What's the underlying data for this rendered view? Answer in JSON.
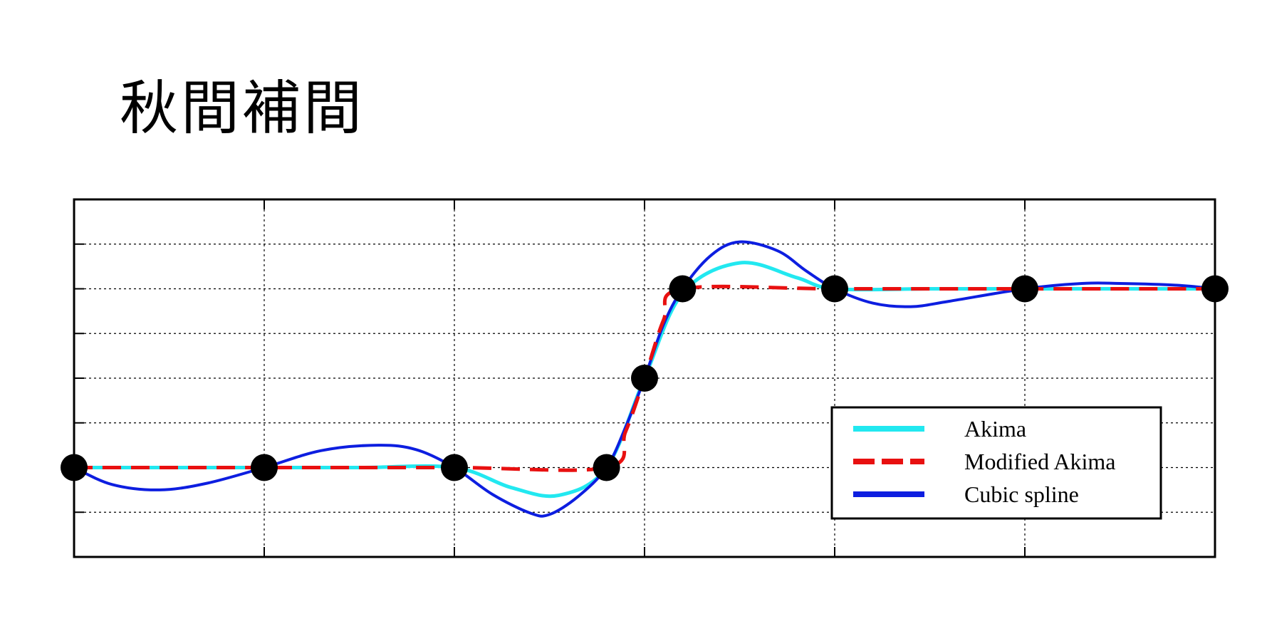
{
  "chart_data": {
    "type": "line",
    "title": "秋間補間",
    "xlabel": "",
    "ylabel": "",
    "xlim": [
      0,
      6
    ],
    "ylim": [
      -1,
      7
    ],
    "grid": true,
    "legend_position": "bottom-right",
    "data_points": {
      "x": [
        0,
        1,
        2,
        2.8,
        3,
        3.2,
        4,
        5,
        6
      ],
      "y": [
        1,
        1,
        1,
        1,
        3,
        5,
        5,
        5,
        5
      ]
    },
    "series": [
      {
        "name": "Akima",
        "color": "#22e8f0",
        "style": "solid",
        "x": [
          0,
          0.5,
          1,
          1.5,
          2,
          2.3,
          2.55,
          2.8,
          3,
          3.2,
          3.5,
          3.8,
          4,
          4.5,
          5,
          5.5,
          6
        ],
        "y": [
          1,
          1,
          1,
          1,
          1,
          0.55,
          0.38,
          1,
          3,
          4.9,
          5.58,
          5.25,
          5,
          5,
          5,
          5,
          5
        ]
      },
      {
        "name": "Modified Akima",
        "color": "#e81010",
        "style": "dashed",
        "x": [
          0,
          1,
          2,
          2.8,
          2.9,
          3,
          3.1,
          3.2,
          4,
          5,
          6
        ],
        "y": [
          1,
          1,
          1,
          1,
          1.8,
          3,
          4.3,
          5,
          5,
          5,
          5
        ]
      },
      {
        "name": "Cubic spline",
        "color": "#0d1ee0",
        "style": "solid",
        "x": [
          0,
          0.2,
          0.45,
          0.7,
          1,
          1.3,
          1.6,
          1.8,
          2,
          2.2,
          2.4,
          2.5,
          2.65,
          2.8,
          2.9,
          3,
          3.1,
          3.2,
          3.35,
          3.5,
          3.7,
          3.85,
          4,
          4.2,
          4.4,
          4.6,
          5,
          5.3,
          5.5,
          5.8,
          6
        ],
        "y": [
          1,
          0.62,
          0.5,
          0.65,
          1,
          1.38,
          1.5,
          1.4,
          1,
          0.4,
          -0.02,
          -0.05,
          0.35,
          1,
          1.9,
          3,
          4.2,
          5,
          5.75,
          6.05,
          5.85,
          5.4,
          5,
          4.68,
          4.6,
          4.72,
          5,
          5.12,
          5.12,
          5.08,
          5
        ]
      }
    ]
  }
}
